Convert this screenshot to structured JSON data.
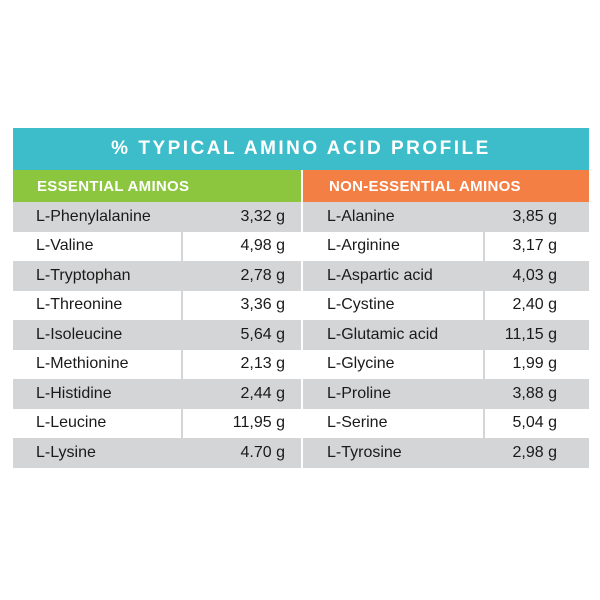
{
  "title": "% TYPICAL AMINO ACID PROFILE",
  "colors": {
    "title_bg": "#3dbcca",
    "essential_header_bg": "#8cc63f",
    "non_essential_header_bg": "#f47f45",
    "row_shade": "#d4d5d6"
  },
  "essential": {
    "header": "ESSENTIAL AMINOS",
    "rows": [
      {
        "name": "L-Phenylalanine",
        "value": "3,32 g"
      },
      {
        "name": "L-Valine",
        "value": "4,98 g"
      },
      {
        "name": "L-Tryptophan",
        "value": "2,78 g"
      },
      {
        "name": "L-Threonine",
        "value": "3,36 g"
      },
      {
        "name": "L-Isoleucine",
        "value": "5,64 g"
      },
      {
        "name": "L-Methionine",
        "value": "2,13 g"
      },
      {
        "name": "L-Histidine",
        "value": "2,44 g"
      },
      {
        "name": "L-Leucine",
        "value": "11,95 g"
      },
      {
        "name": "L-Lysine",
        "value": "4.70 g"
      }
    ]
  },
  "non_essential": {
    "header": "NON-ESSENTIAL AMINOS",
    "rows": [
      {
        "name": "L-Alanine",
        "value": "3,85 g"
      },
      {
        "name": "L-Arginine",
        "value": "3,17 g"
      },
      {
        "name": "L-Aspartic acid",
        "value": "4,03 g"
      },
      {
        "name": "L-Cystine",
        "value": "2,40 g"
      },
      {
        "name": "L-Glutamic acid",
        "value": "11,15 g"
      },
      {
        "name": "L-Glycine",
        "value": "1,99 g"
      },
      {
        "name": "L-Proline",
        "value": "3,88 g"
      },
      {
        "name": "L-Serine",
        "value": "5,04 g"
      },
      {
        "name": "L-Tyrosine",
        "value": "2,98 g"
      }
    ]
  }
}
